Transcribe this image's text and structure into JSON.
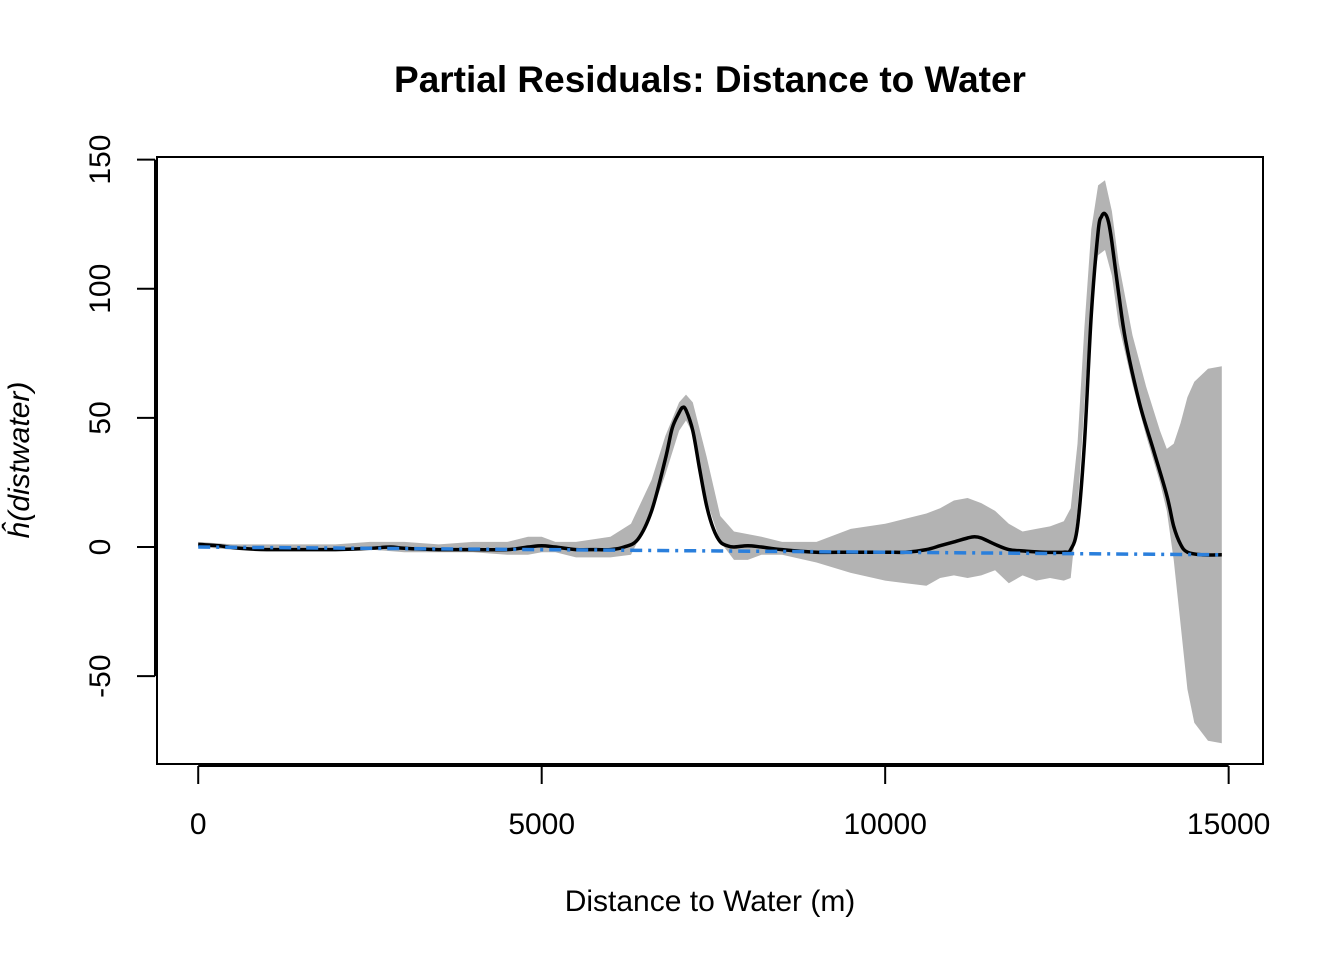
{
  "chart_data": {
    "type": "line",
    "title": "Partial Residuals: Distance to Water",
    "xlabel": "Distance to Water (m)",
    "ylabel": {
      "prefix": "ĥ(",
      "variable": "distwater",
      "suffix": ")"
    },
    "xlim": [
      -600,
      15500
    ],
    "ylim": [
      -84,
      151
    ],
    "x_ticks": [
      0,
      5000,
      10000,
      15000
    ],
    "x_tick_labels": [
      "0",
      "5000",
      "10000",
      "15000"
    ],
    "y_ticks": [
      -50,
      0,
      50,
      100,
      150
    ],
    "y_tick_labels": [
      "-50",
      "0",
      "50",
      "100",
      "150"
    ],
    "grid": false,
    "legend": "none",
    "colors": {
      "band": "#b3b3b3",
      "smooth": "#000000",
      "linear": "#2a7fdc"
    },
    "series": [
      {
        "kind": "confidence-band",
        "x": [
          0,
          500,
          1000,
          1500,
          2000,
          2500,
          3000,
          3500,
          4000,
          4500,
          4800,
          5000,
          5200,
          5500,
          6000,
          6300,
          6600,
          6800,
          7000,
          7100,
          7200,
          7400,
          7600,
          7800,
          8000,
          8200,
          8500,
          9000,
          9500,
          10000,
          10300,
          10600,
          10800,
          11000,
          11200,
          11400,
          11600,
          11800,
          12000,
          12200,
          12400,
          12600,
          12700,
          12800,
          12900,
          13000,
          13100,
          13200,
          13300,
          13400,
          13600,
          13800,
          14000,
          14100,
          14200,
          14300,
          14400,
          14500,
          14700,
          14900
        ],
        "upper": [
          2,
          1,
          1,
          1,
          1,
          2,
          2,
          1,
          2,
          2,
          4,
          4,
          2,
          2,
          4,
          9,
          26,
          43,
          56,
          59,
          56,
          35,
          12,
          6,
          5,
          4,
          2,
          2,
          7,
          9,
          11,
          13,
          15,
          18,
          19,
          17,
          14,
          9,
          6,
          7,
          8,
          10,
          15,
          40,
          85,
          123,
          140,
          142,
          130,
          110,
          82,
          62,
          45,
          38,
          40,
          48,
          58,
          64,
          69,
          70
        ],
        "lower": [
          0,
          -1,
          -1,
          -1,
          -1,
          -1,
          -2,
          -2,
          -2,
          -3,
          -3,
          -2,
          -2,
          -4,
          -4,
          -3,
          13,
          28,
          45,
          49,
          44,
          18,
          2,
          -5,
          -5,
          -3,
          -3,
          -6,
          -10,
          -13,
          -14,
          -15,
          -12,
          -11,
          -12,
          -11,
          -9,
          -14,
          -11,
          -13,
          -12,
          -13,
          -12,
          14,
          55,
          98,
          113,
          115,
          105,
          86,
          63,
          43,
          25,
          14,
          -5,
          -30,
          -55,
          -68,
          -75,
          -76
        ]
      },
      {
        "name": "",
        "kind": "smooth",
        "x": [
          0,
          300,
          600,
          1000,
          1500,
          2000,
          2500,
          2800,
          3000,
          3500,
          4000,
          4500,
          4800,
          5000,
          5200,
          5500,
          5800,
          6000,
          6200,
          6400,
          6600,
          6800,
          6900,
          7000,
          7050,
          7100,
          7200,
          7300,
          7400,
          7500,
          7600,
          7700,
          7800,
          8000,
          8200,
          8500,
          9000,
          9500,
          10000,
          10300,
          10600,
          10800,
          11000,
          11200,
          11300,
          11400,
          11600,
          11800,
          12000,
          12300,
          12600,
          12700,
          12800,
          12900,
          13000,
          13100,
          13150,
          13200,
          13250,
          13300,
          13400,
          13500,
          13700,
          13900,
          14100,
          14200,
          14300,
          14400,
          14600,
          14900
        ],
        "y": [
          1,
          0.5,
          -0.5,
          -1,
          -1,
          -1,
          -0.5,
          0,
          -0.5,
          -1,
          -1,
          -1,
          0,
          0.5,
          0,
          -1,
          -1,
          -1,
          0,
          3,
          14,
          34,
          46,
          52,
          54,
          53,
          45,
          30,
          16,
          7,
          2,
          0.5,
          0,
          0.5,
          0,
          -1,
          -2,
          -2,
          -2,
          -2,
          -1,
          0.5,
          2,
          3.5,
          4,
          3.5,
          1,
          -1,
          -1.5,
          -2,
          -2,
          -1,
          8,
          40,
          90,
          122,
          128,
          129,
          126,
          118,
          98,
          80,
          56,
          38,
          20,
          8,
          1,
          -2,
          -3,
          -3
        ]
      },
      {
        "name": "",
        "kind": "linear",
        "x": [
          0,
          14900
        ],
        "y": [
          0,
          -3
        ]
      }
    ]
  }
}
